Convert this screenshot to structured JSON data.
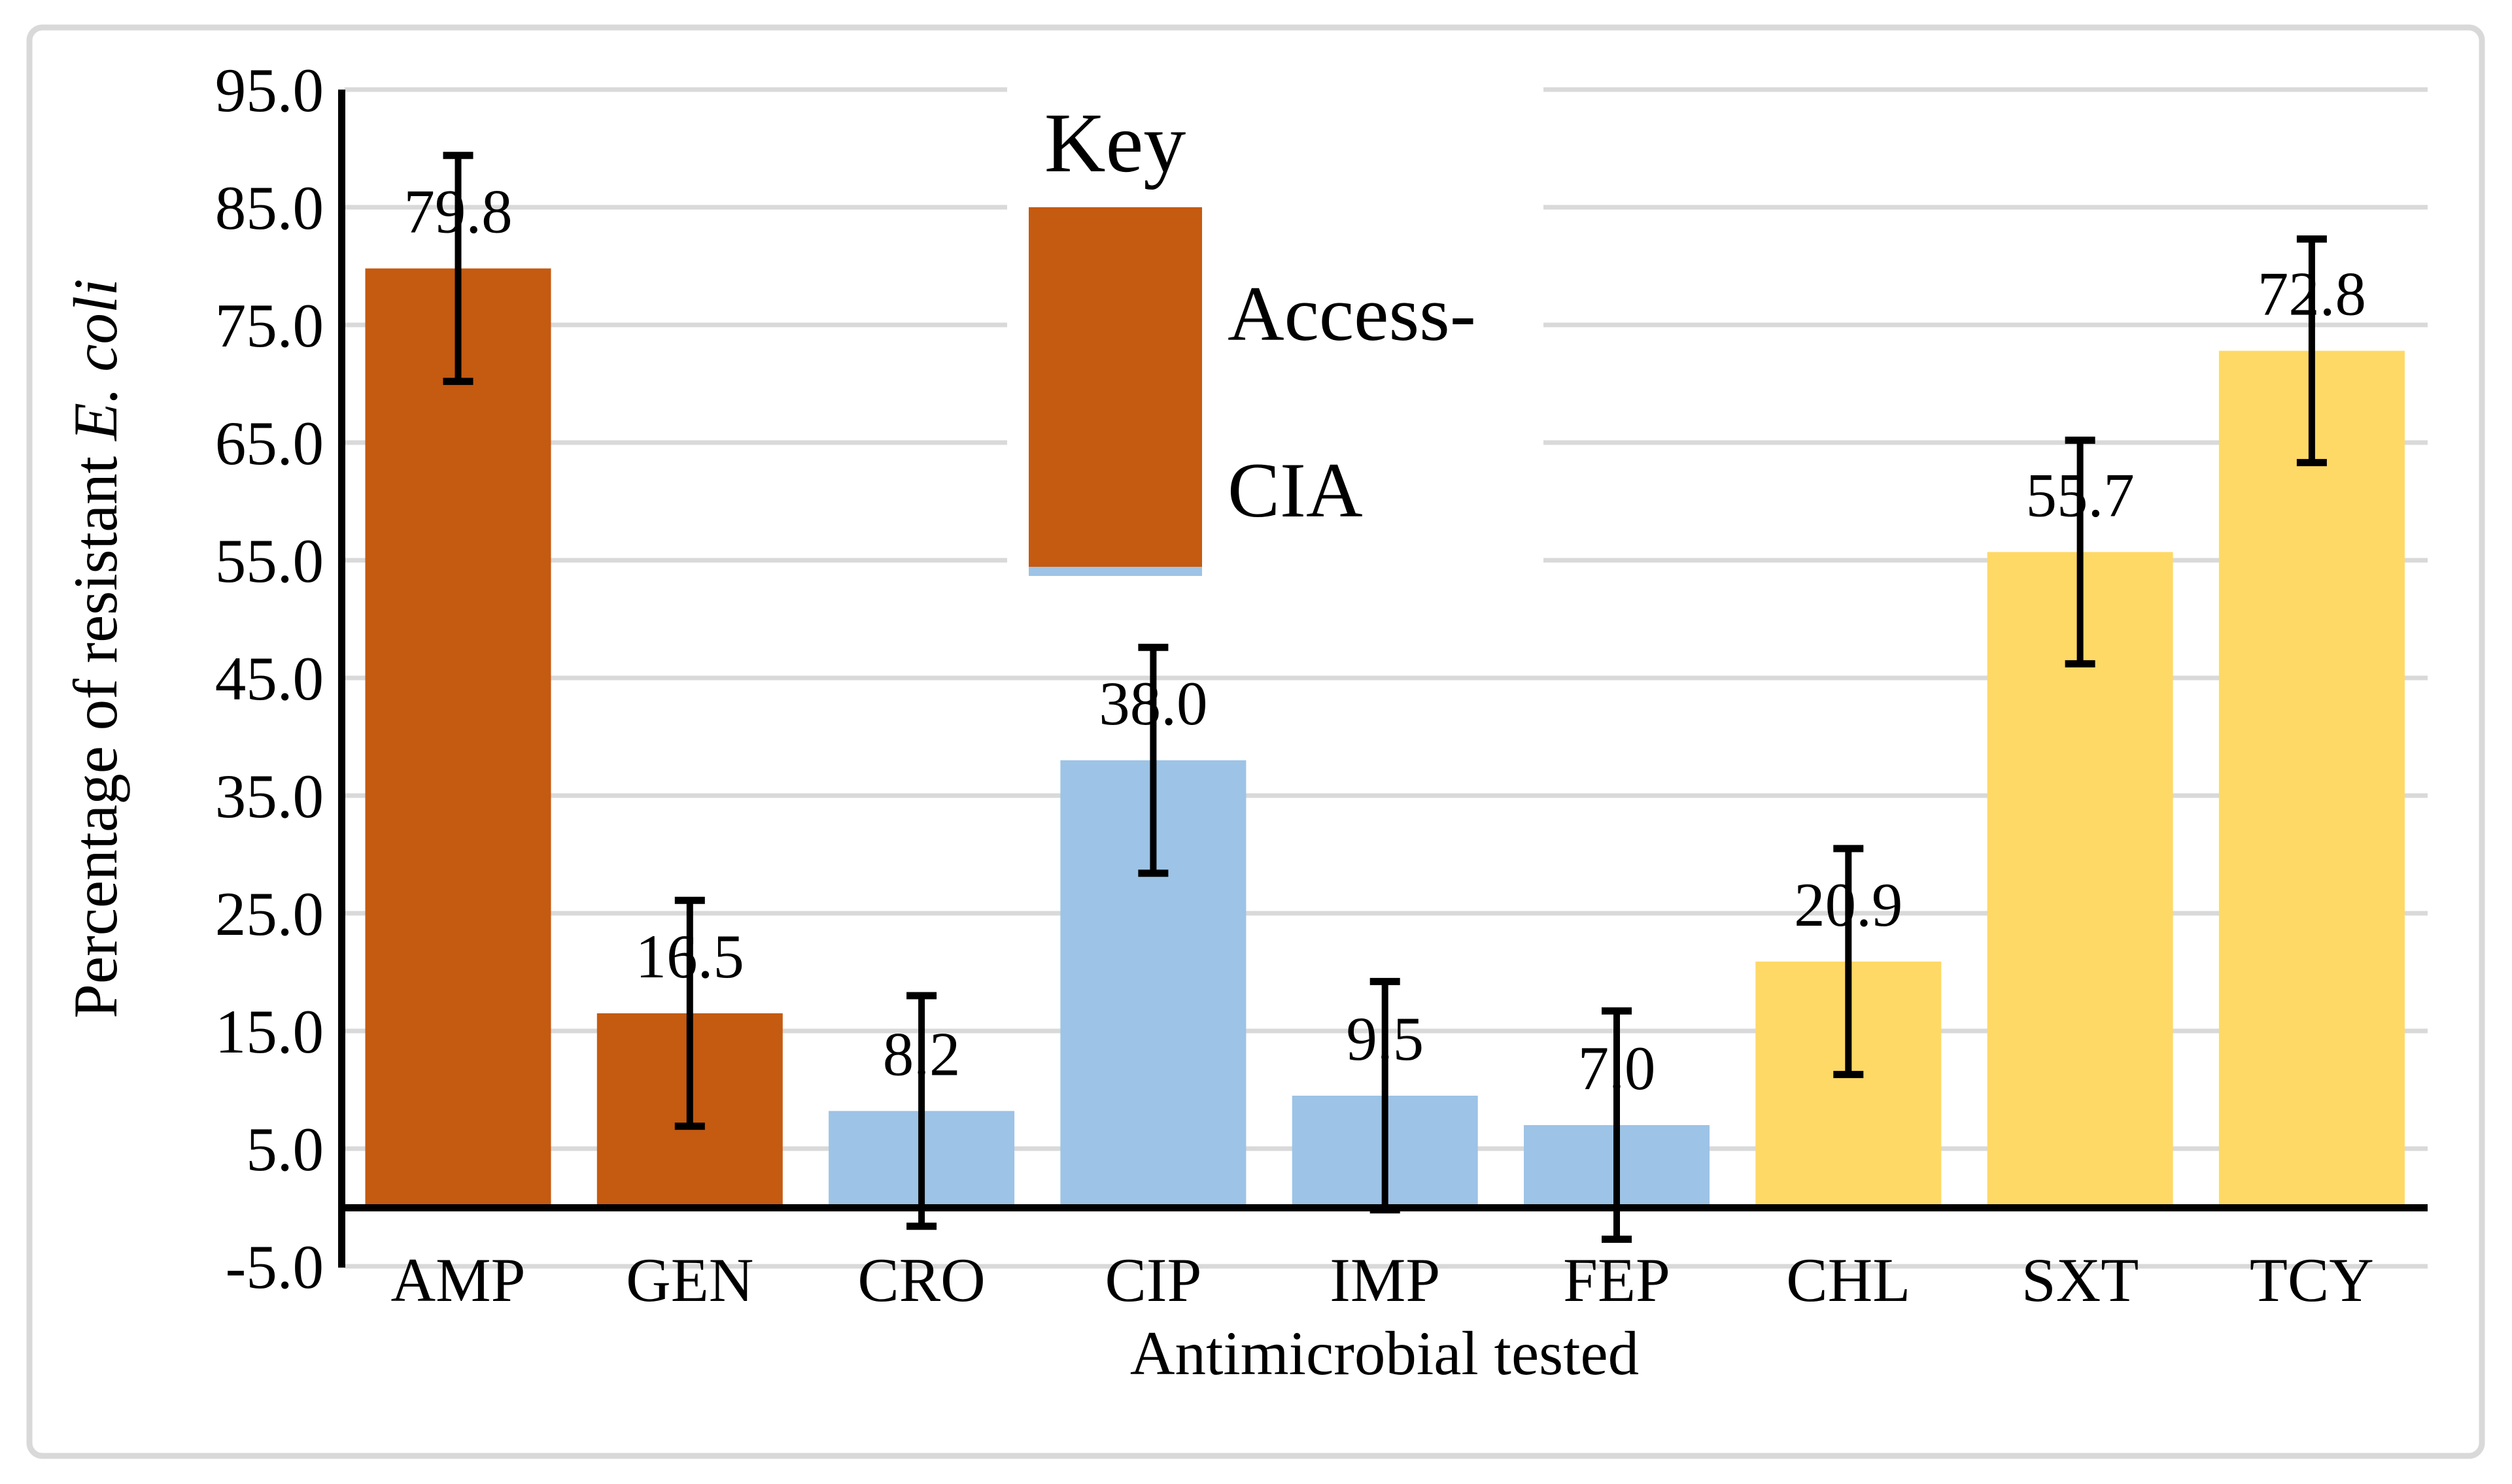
{
  "figure": {
    "background": "#FFFFFF",
    "border_color": "#D9D9D9"
  },
  "chart_data": {
    "type": "bar",
    "title": "",
    "categories": [
      "AMP",
      "GEN",
      "CRO",
      "CIP",
      "IMP",
      "FEP",
      "CHL",
      "SXT",
      "TCY"
    ],
    "values": [
      79.8,
      16.5,
      8.2,
      38.0,
      9.5,
      7.0,
      20.9,
      55.7,
      72.8
    ],
    "errors": [
      9.6,
      9.6,
      9.8,
      9.6,
      9.7,
      9.7,
      9.6,
      9.5,
      9.5
    ],
    "data_labels": [
      "79.8",
      "16.5",
      "8.2",
      "38.0",
      "9.5",
      "7.0",
      "20.9",
      "55.7",
      "72.8"
    ],
    "bar_colors": [
      "#C55A11",
      "#C55A11",
      "#9DC3E6",
      "#9DC3E6",
      "#9DC3E6",
      "#9DC3E6",
      "#FFD966",
      "#FFD966",
      "#FFD966"
    ],
    "xlabel": "Antimicrobial tested",
    "ylabel": "Percentage of resistant E. coli",
    "ylabel_regular": "Percentage of resistant ",
    "ylabel_italic": "E. coli",
    "ylim": [
      -5,
      95
    ],
    "ytick_step": 10,
    "yticks": [
      "95.0",
      "85.0",
      "75.0",
      "65.0",
      "55.0",
      "45.0",
      "35.0",
      "25.0",
      "15.0",
      "5.0",
      "-5.0"
    ],
    "ytick_values": [
      95,
      85,
      75,
      65,
      55,
      45,
      35,
      25,
      15,
      5,
      -5
    ],
    "grid": true,
    "gridline_color": "#D9D9D9",
    "axis_color": "#000000",
    "error_bar_color": "#000000",
    "legend": {
      "position": "top-center-inside",
      "title": "Key",
      "entries": [
        {
          "label": "Access-CIA",
          "label_lines": [
            "Access-",
            "CIA"
          ],
          "color": "#C55A11",
          "secondary_strip_color": "#9DC3E6"
        }
      ]
    }
  }
}
